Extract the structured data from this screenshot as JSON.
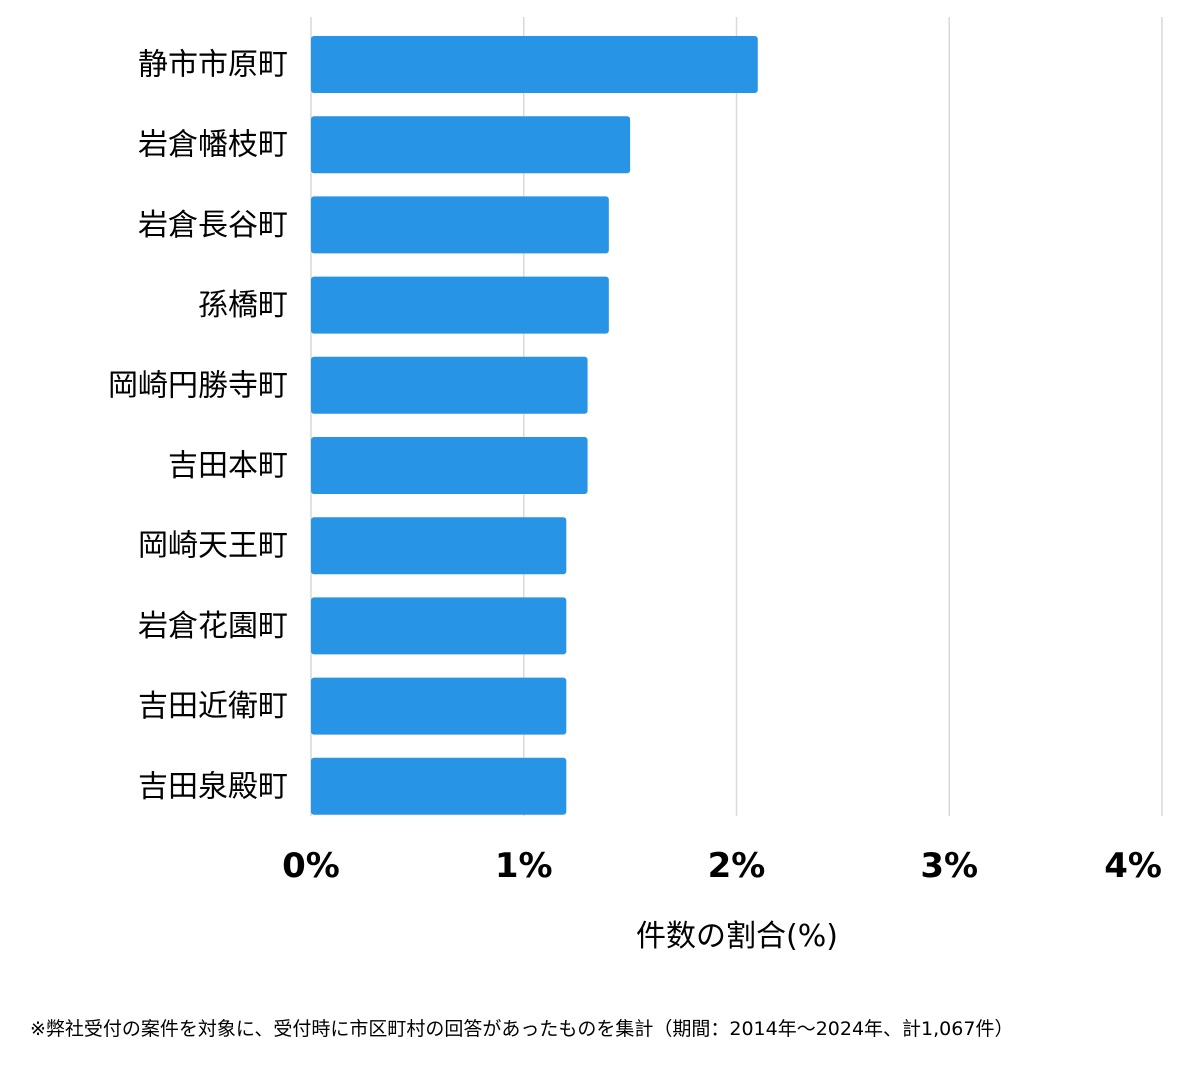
{
  "chart_data": {
    "type": "bar",
    "orientation": "horizontal",
    "categories": [
      "静市市原町",
      "岩倉幡枝町",
      "岩倉長谷町",
      "孫橋町",
      "岡崎円勝寺町",
      "吉田本町",
      "岡崎天王町",
      "岩倉花園町",
      "吉田近衛町",
      "吉田泉殿町"
    ],
    "values": [
      2.1,
      1.5,
      1.4,
      1.4,
      1.3,
      1.3,
      1.2,
      1.2,
      1.2,
      1.2
    ],
    "xlim": [
      0,
      4
    ],
    "xticks": [
      0,
      1,
      2,
      3,
      4
    ],
    "xtick_labels": [
      "0%",
      "1%",
      "2%",
      "3%",
      "4%"
    ],
    "xlabel": "件数の割合(%)",
    "ylabel": "",
    "title": "",
    "grid": "vertical",
    "bar_color": "#2894e6",
    "grid_color": "#d9d9d9"
  },
  "footnote": "※弊社受付の案件を対象に、受付時に市区町村の回答があったものを集計（期間：2014年～2024年、計1,067件）"
}
